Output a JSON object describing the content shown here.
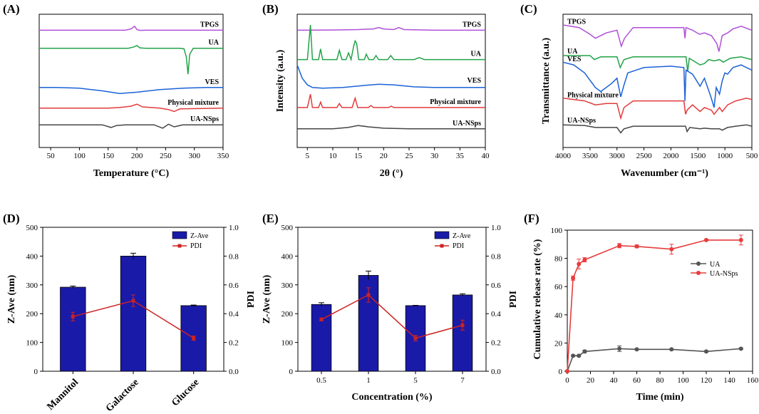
{
  "colors": {
    "TPGS": "#b04fd8",
    "UA": "#22a348",
    "VES": "#1a62d6",
    "Physical mixture": "#e23b3b",
    "UA-NSps": "#444444",
    "bar": "#1a1aa8",
    "pdi": "#cc2222",
    "release_ua": "#555555",
    "release_uansps": "#e83c3c"
  },
  "chart_data": [
    {
      "panel": "(A)",
      "type": "line",
      "title": "",
      "xlabel": "Temperature (°C)",
      "ylabel": "",
      "xlim": [
        30,
        350
      ],
      "xticks": [
        50,
        100,
        150,
        200,
        250,
        300,
        350
      ],
      "series": [
        {
          "name": "TPGS",
          "baseline": 0.88,
          "x": [
            30,
            180,
            190,
            196,
            200,
            205,
            215,
            350
          ],
          "y": [
            0.88,
            0.88,
            0.89,
            0.91,
            0.885,
            0.879,
            0.88,
            0.88
          ]
        },
        {
          "name": "UA",
          "baseline": 0.745,
          "x": [
            30,
            185,
            195,
            200,
            205,
            215,
            260,
            275,
            282,
            286,
            289,
            292,
            298,
            310,
            350
          ],
          "y": [
            0.745,
            0.745,
            0.755,
            0.765,
            0.748,
            0.745,
            0.745,
            0.745,
            0.74,
            0.68,
            0.55,
            0.7,
            0.745,
            0.745,
            0.745
          ]
        },
        {
          "name": "VES",
          "baseline": 0.45,
          "x": [
            30,
            60,
            100,
            140,
            170,
            200,
            240,
            280,
            320,
            350
          ],
          "y": [
            0.45,
            0.45,
            0.445,
            0.425,
            0.405,
            0.415,
            0.435,
            0.445,
            0.45,
            0.45
          ]
        },
        {
          "name": "Physical mixture",
          "baseline": 0.295,
          "x": [
            30,
            150,
            170,
            190,
            200,
            210,
            240,
            255,
            265,
            275,
            350
          ],
          "y": [
            0.295,
            0.295,
            0.3,
            0.31,
            0.325,
            0.305,
            0.295,
            0.285,
            0.27,
            0.29,
            0.295
          ]
        },
        {
          "name": "UA-NSps",
          "baseline": 0.17,
          "x": [
            30,
            140,
            155,
            165,
            180,
            230,
            245,
            255,
            265,
            280,
            350
          ],
          "y": [
            0.17,
            0.17,
            0.15,
            0.165,
            0.17,
            0.17,
            0.145,
            0.175,
            0.155,
            0.17,
            0.17
          ]
        }
      ]
    },
    {
      "panel": "(B)",
      "type": "line",
      "title": "",
      "xlabel": "2θ (°)",
      "ylabel": "Intensity (a.u.)",
      "xlim": [
        3,
        40
      ],
      "xticks": [
        5,
        10,
        15,
        20,
        25,
        30,
        35,
        40
      ],
      "series": [
        {
          "name": "TPGS",
          "baseline": 0.88,
          "x": [
            3,
            10,
            15,
            18,
            19,
            20,
            22,
            23,
            24,
            30,
            40
          ],
          "y": [
            0.88,
            0.882,
            0.885,
            0.89,
            0.9,
            0.89,
            0.885,
            0.9,
            0.885,
            0.88,
            0.88
          ]
        },
        {
          "name": "UA",
          "baseline": 0.66,
          "x": [
            3,
            5.0,
            5.6,
            6.0,
            7.2,
            7.6,
            8.0,
            10.8,
            11.3,
            11.8,
            12.6,
            13.1,
            13.6,
            14.1,
            14.4,
            14.7,
            15.1,
            16.2,
            16.6,
            17.1,
            18.0,
            18.5,
            19.0,
            20.8,
            21.4,
            22.0,
            26,
            27,
            28,
            40
          ],
          "y": [
            0.66,
            0.66,
            0.92,
            0.66,
            0.66,
            0.74,
            0.66,
            0.66,
            0.73,
            0.66,
            0.66,
            0.71,
            0.66,
            0.76,
            0.8,
            0.78,
            0.66,
            0.66,
            0.7,
            0.66,
            0.66,
            0.69,
            0.66,
            0.66,
            0.69,
            0.66,
            0.66,
            0.675,
            0.66,
            0.66
          ]
        },
        {
          "name": "VES",
          "baseline": 0.46,
          "x": [
            3,
            4,
            5,
            6,
            8,
            12,
            16,
            19,
            22,
            26,
            30,
            35,
            40
          ],
          "y": [
            0.62,
            0.52,
            0.47,
            0.45,
            0.445,
            0.45,
            0.465,
            0.475,
            0.47,
            0.455,
            0.45,
            0.45,
            0.45
          ]
        },
        {
          "name": "Physical mixture",
          "baseline": 0.3,
          "x": [
            3,
            5.0,
            5.6,
            6.0,
            7.2,
            7.6,
            8.0,
            10.8,
            11.3,
            11.8,
            13.8,
            14.4,
            14.9,
            15.4,
            17,
            17.5,
            18,
            21,
            21.5,
            22,
            40
          ],
          "y": [
            0.3,
            0.3,
            0.4,
            0.3,
            0.3,
            0.34,
            0.3,
            0.3,
            0.33,
            0.3,
            0.3,
            0.37,
            0.3,
            0.3,
            0.3,
            0.315,
            0.3,
            0.3,
            0.31,
            0.3,
            0.3
          ]
        },
        {
          "name": "UA-NSps",
          "baseline": 0.14,
          "x": [
            3,
            10,
            13,
            15,
            17,
            20,
            25,
            30,
            40
          ],
          "y": [
            0.14,
            0.14,
            0.15,
            0.165,
            0.155,
            0.145,
            0.14,
            0.14,
            0.14
          ]
        }
      ]
    },
    {
      "panel": "(C)",
      "type": "line",
      "title": "",
      "xlabel": "Wavenumber (cm⁻¹)",
      "ylabel": "Transmittance (a.u.)",
      "xlim": [
        4000,
        500
      ],
      "xticks": [
        4000,
        3500,
        3000,
        2500,
        2000,
        1500,
        1000,
        500
      ],
      "series": [
        {
          "name": "TPGS",
          "baseline": 0.9,
          "x": [
            4000,
            3700,
            3500,
            3400,
            3200,
            3000,
            2920,
            2860,
            2700,
            2000,
            1760,
            1740,
            1720,
            1600,
            1470,
            1380,
            1250,
            1150,
            1110,
            1050,
            950,
            850,
            700,
            500
          ],
          "y": [
            0.92,
            0.9,
            0.85,
            0.82,
            0.86,
            0.88,
            0.76,
            0.82,
            0.9,
            0.9,
            0.9,
            0.82,
            0.9,
            0.88,
            0.85,
            0.86,
            0.84,
            0.78,
            0.72,
            0.84,
            0.86,
            0.89,
            0.91,
            0.88
          ]
        },
        {
          "name": "UA",
          "baseline": 0.68,
          "x": [
            4000,
            3500,
            3420,
            3300,
            3000,
            2940,
            2870,
            2700,
            2000,
            1720,
            1690,
            1660,
            1460,
            1380,
            1300,
            1200,
            1100,
            1030,
            900,
            700,
            500
          ],
          "y": [
            0.69,
            0.69,
            0.66,
            0.68,
            0.68,
            0.6,
            0.66,
            0.68,
            0.68,
            0.68,
            0.57,
            0.67,
            0.62,
            0.63,
            0.66,
            0.65,
            0.66,
            0.64,
            0.67,
            0.68,
            0.66
          ]
        },
        {
          "name": "VES",
          "baseline": 0.62,
          "x": [
            4000,
            3800,
            3600,
            3400,
            3300,
            3100,
            3000,
            2930,
            2870,
            2800,
            2500,
            2000,
            1760,
            1740,
            1720,
            1600,
            1460,
            1380,
            1260,
            1200,
            1160,
            1100,
            1050,
            1000,
            950,
            850,
            700,
            600,
            500
          ],
          "y": [
            0.64,
            0.62,
            0.56,
            0.45,
            0.42,
            0.48,
            0.52,
            0.38,
            0.47,
            0.56,
            0.6,
            0.61,
            0.6,
            0.35,
            0.58,
            0.55,
            0.46,
            0.52,
            0.38,
            0.3,
            0.45,
            0.4,
            0.5,
            0.56,
            0.55,
            0.6,
            0.62,
            0.6,
            0.58
          ]
        },
        {
          "name": "Physical mixture",
          "baseline": 0.35,
          "x": [
            4000,
            3600,
            3400,
            3200,
            3000,
            2930,
            2870,
            2700,
            2000,
            1760,
            1730,
            1700,
            1600,
            1460,
            1380,
            1250,
            1200,
            1100,
            1050,
            950,
            800,
            600,
            500
          ],
          "y": [
            0.37,
            0.35,
            0.32,
            0.33,
            0.33,
            0.22,
            0.3,
            0.35,
            0.35,
            0.35,
            0.25,
            0.28,
            0.32,
            0.27,
            0.3,
            0.28,
            0.25,
            0.3,
            0.27,
            0.32,
            0.35,
            0.37,
            0.36
          ]
        },
        {
          "name": "UA-NSps",
          "baseline": 0.16,
          "x": [
            4000,
            3600,
            3400,
            3200,
            3000,
            2930,
            2870,
            2700,
            2000,
            1730,
            1700,
            1650,
            1460,
            1380,
            1250,
            1100,
            1050,
            950,
            800,
            600,
            500
          ],
          "y": [
            0.17,
            0.165,
            0.15,
            0.15,
            0.15,
            0.11,
            0.14,
            0.16,
            0.16,
            0.16,
            0.12,
            0.15,
            0.14,
            0.145,
            0.14,
            0.14,
            0.13,
            0.15,
            0.16,
            0.17,
            0.16
          ]
        }
      ]
    },
    {
      "panel": "(D)",
      "type": "bar",
      "categories": [
        "Mannitol",
        "Galactose",
        "Glucose"
      ],
      "series": [
        {
          "name": "Z-Ave",
          "axis": "left",
          "values": [
            292,
            400,
            228
          ],
          "errors": [
            4,
            10,
            2
          ]
        },
        {
          "name": "PDI",
          "axis": "right",
          "values": [
            0.38,
            0.49,
            0.23
          ],
          "errors": [
            0.03,
            0.04,
            0.015
          ]
        }
      ],
      "xlabel": "",
      "ylabel": "Z-Ave (nm)",
      "y2label": "PDI",
      "ylim": [
        0,
        500
      ],
      "yticks": [
        0,
        100,
        200,
        300,
        400,
        500
      ],
      "y2lim": [
        0,
        1.0
      ],
      "y2ticks": [
        "0.0",
        "0.2",
        "0.4",
        "0.6",
        "0.8",
        "1.0"
      ],
      "legend": "top-right"
    },
    {
      "panel": "(E)",
      "type": "bar",
      "categories": [
        "0.5",
        "1",
        "5",
        "7"
      ],
      "series": [
        {
          "name": "Z-Ave",
          "axis": "left",
          "values": [
            232,
            333,
            228,
            265
          ],
          "errors": [
            6,
            15,
            1,
            4
          ]
        },
        {
          "name": "PDI",
          "axis": "right",
          "values": [
            0.36,
            0.53,
            0.23,
            0.32
          ],
          "errors": [
            0.01,
            0.05,
            0.02,
            0.035
          ]
        }
      ],
      "xlabel": "Concentration (%)",
      "ylabel": "Z-Ave (nm)",
      "y2label": "PDI",
      "ylim": [
        0,
        500
      ],
      "yticks": [
        0,
        100,
        200,
        300,
        400,
        500
      ],
      "y2lim": [
        0,
        1.0
      ],
      "y2ticks": [
        "0.0",
        "0.2",
        "0.4",
        "0.6",
        "0.8",
        "1.0"
      ],
      "legend": "top-right"
    },
    {
      "panel": "(F)",
      "type": "line",
      "series": [
        {
          "name": "UA",
          "x": [
            0,
            5,
            10,
            15,
            45,
            60,
            90,
            120,
            150
          ],
          "y": [
            0,
            11,
            11,
            14,
            16,
            15.5,
            15.5,
            14,
            16
          ],
          "errors": [
            0,
            0.5,
            0.5,
            1,
            2,
            0.5,
            0.5,
            0.5,
            0.5
          ]
        },
        {
          "name": "UA-NSps",
          "x": [
            0,
            5,
            10,
            15,
            45,
            60,
            90,
            120,
            150
          ],
          "y": [
            0,
            66,
            76,
            79,
            89,
            88.5,
            86.5,
            93,
            93
          ],
          "errors": [
            0,
            1.5,
            3.5,
            1.5,
            1.5,
            1,
            3.5,
            0.5,
            3.5
          ]
        }
      ],
      "xlabel": "Time (min)",
      "ylabel": "Cumulative release rate (%)",
      "xlim": [
        0,
        160
      ],
      "xticks": [
        0,
        20,
        40,
        60,
        80,
        100,
        120,
        140,
        160
      ],
      "ylim": [
        0,
        100
      ],
      "yticks": [
        0,
        20,
        40,
        60,
        80,
        100
      ],
      "legend": "right"
    }
  ]
}
